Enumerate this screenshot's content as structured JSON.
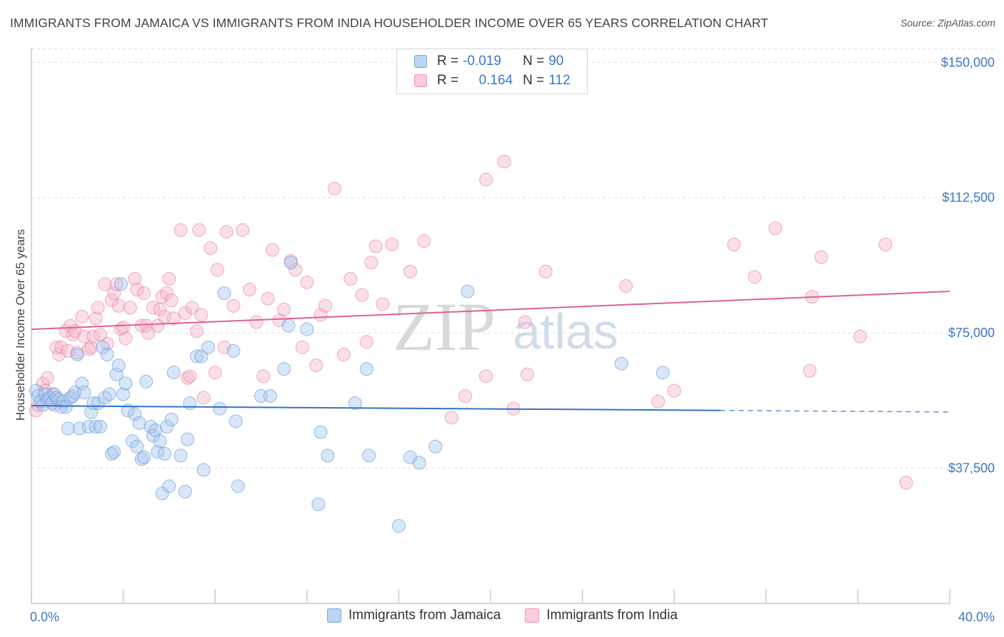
{
  "title": "IMMIGRANTS FROM JAMAICA VS IMMIGRANTS FROM INDIA HOUSEHOLDER INCOME OVER 65 YEARS CORRELATION CHART",
  "source": "Source: ZipAtlas.com",
  "watermark": {
    "zip": "ZIP",
    "atlas": "atlas"
  },
  "legend": {
    "rows": [
      {
        "r_label": "R =",
        "r_value": "-0.019",
        "n_label": "N =",
        "n_value": "90",
        "color": "#a8c8f0"
      },
      {
        "r_label": "R =",
        "r_value": "0.164",
        "n_label": "N =",
        "n_value": "112",
        "color": "#f5b8cc"
      }
    ]
  },
  "bottom_legend": [
    "Immigrants from Jamaica",
    "Immigrants from India"
  ],
  "chart_data": {
    "type": "scatter",
    "ylabel": "Householder Income Over 65 years",
    "xlim": [
      0,
      40
    ],
    "ylim": [
      0,
      155000
    ],
    "x_tick_labels": [
      "0.0%",
      "40.0%"
    ],
    "y_ticks": [
      37500,
      75000,
      112500,
      150000
    ],
    "y_tick_labels": [
      "$37,500",
      "$75,000",
      "$112,500",
      "$150,000"
    ],
    "grid": true,
    "colors": {
      "jamaica": "#5b93d6",
      "jamaica_fill": "#a8c8f0",
      "india": "#e3709a",
      "india_fill": "#f5b8cc"
    },
    "series": [
      {
        "name": "Immigrants from Jamaica",
        "trend": {
          "x0": 0,
          "y0": 54800,
          "x1": 30,
          "y1": 53500,
          "dashed_to_x": 40
        },
        "points": [
          [
            0.2,
            59000
          ],
          [
            0.3,
            57500
          ],
          [
            0.4,
            56000
          ],
          [
            0.5,
            55000
          ],
          [
            0.6,
            58000
          ],
          [
            0.7,
            56500
          ],
          [
            0.8,
            57000
          ],
          [
            0.9,
            55500
          ],
          [
            1.0,
            58000
          ],
          [
            1.1,
            57000
          ],
          [
            1.2,
            56500
          ],
          [
            1.3,
            54500
          ],
          [
            1.4,
            56000
          ],
          [
            1.5,
            54500
          ],
          [
            1.6,
            48500
          ],
          [
            1.7,
            57000
          ],
          [
            1.8,
            57500
          ],
          [
            1.9,
            58500
          ],
          [
            2.0,
            69000
          ],
          [
            2.1,
            48500
          ],
          [
            2.2,
            61000
          ],
          [
            2.3,
            58500
          ],
          [
            2.5,
            49000
          ],
          [
            2.6,
            53000
          ],
          [
            2.7,
            55500
          ],
          [
            2.8,
            49000
          ],
          [
            2.9,
            55500
          ],
          [
            3.0,
            49000
          ],
          [
            3.1,
            71000
          ],
          [
            3.2,
            57000
          ],
          [
            3.3,
            69000
          ],
          [
            3.4,
            58000
          ],
          [
            3.5,
            41500
          ],
          [
            3.6,
            42000
          ],
          [
            3.7,
            63500
          ],
          [
            3.8,
            66000
          ],
          [
            3.9,
            88500
          ],
          [
            4.0,
            58000
          ],
          [
            4.1,
            61000
          ],
          [
            4.2,
            53500
          ],
          [
            4.4,
            45000
          ],
          [
            4.5,
            52500
          ],
          [
            4.6,
            43500
          ],
          [
            4.7,
            50000
          ],
          [
            4.8,
            40000
          ],
          [
            4.9,
            40500
          ],
          [
            5.0,
            61500
          ],
          [
            5.2,
            49000
          ],
          [
            5.3,
            46500
          ],
          [
            5.4,
            48000
          ],
          [
            5.5,
            42000
          ],
          [
            5.6,
            45000
          ],
          [
            5.7,
            30500
          ],
          [
            5.8,
            41500
          ],
          [
            5.9,
            49000
          ],
          [
            6.0,
            32500
          ],
          [
            6.1,
            51000
          ],
          [
            6.2,
            64000
          ],
          [
            6.5,
            41000
          ],
          [
            6.7,
            31000
          ],
          [
            6.8,
            45500
          ],
          [
            6.9,
            55500
          ],
          [
            7.2,
            68500
          ],
          [
            7.4,
            68500
          ],
          [
            7.5,
            37000
          ],
          [
            7.7,
            71000
          ],
          [
            8.2,
            54000
          ],
          [
            8.4,
            86000
          ],
          [
            8.8,
            70000
          ],
          [
            8.9,
            50500
          ],
          [
            9.0,
            32500
          ],
          [
            10.0,
            57500
          ],
          [
            10.4,
            57500
          ],
          [
            11.0,
            65000
          ],
          [
            11.2,
            77000
          ],
          [
            11.3,
            94500
          ],
          [
            12.0,
            76000
          ],
          [
            12.5,
            27500
          ],
          [
            12.6,
            47500
          ],
          [
            12.9,
            41000
          ],
          [
            14.1,
            55500
          ],
          [
            14.6,
            65000
          ],
          [
            14.7,
            41000
          ],
          [
            16.0,
            21500
          ],
          [
            16.5,
            40500
          ],
          [
            16.9,
            39000
          ],
          [
            17.6,
            43500
          ],
          [
            19.0,
            86500
          ],
          [
            25.7,
            66500
          ],
          [
            27.5,
            64000
          ]
        ]
      },
      {
        "name": "Immigrants from India",
        "trend": {
          "x0": 0,
          "y0": 76000,
          "x1": 40,
          "y1": 86500
        },
        "points": [
          [
            0.2,
            53500
          ],
          [
            0.3,
            55000
          ],
          [
            0.5,
            61000
          ],
          [
            0.6,
            59000
          ],
          [
            0.7,
            62500
          ],
          [
            0.8,
            56500
          ],
          [
            0.9,
            58000
          ],
          [
            1.0,
            55000
          ],
          [
            1.1,
            71000
          ],
          [
            1.2,
            69000
          ],
          [
            1.3,
            71000
          ],
          [
            1.5,
            75500
          ],
          [
            1.6,
            70000
          ],
          [
            1.7,
            77000
          ],
          [
            1.8,
            74500
          ],
          [
            1.9,
            75500
          ],
          [
            2.0,
            69500
          ],
          [
            2.2,
            79500
          ],
          [
            2.3,
            74000
          ],
          [
            2.5,
            70500
          ],
          [
            2.6,
            71000
          ],
          [
            2.7,
            74000
          ],
          [
            2.8,
            79000
          ],
          [
            2.9,
            82000
          ],
          [
            3.0,
            74500
          ],
          [
            3.2,
            88500
          ],
          [
            3.3,
            72000
          ],
          [
            3.5,
            84000
          ],
          [
            3.6,
            86000
          ],
          [
            3.7,
            88500
          ],
          [
            3.8,
            82500
          ],
          [
            3.9,
            76000
          ],
          [
            4.0,
            76500
          ],
          [
            4.1,
            73500
          ],
          [
            4.3,
            82000
          ],
          [
            4.5,
            90000
          ],
          [
            4.6,
            87000
          ],
          [
            4.8,
            77000
          ],
          [
            4.9,
            86000
          ],
          [
            5.0,
            77000
          ],
          [
            5.1,
            75000
          ],
          [
            5.3,
            82000
          ],
          [
            5.5,
            77000
          ],
          [
            5.6,
            81500
          ],
          [
            5.7,
            85000
          ],
          [
            5.8,
            79500
          ],
          [
            5.9,
            86000
          ],
          [
            6.0,
            90000
          ],
          [
            6.1,
            84000
          ],
          [
            6.2,
            79000
          ],
          [
            6.5,
            103500
          ],
          [
            6.7,
            80500
          ],
          [
            6.8,
            62500
          ],
          [
            6.9,
            63000
          ],
          [
            7.0,
            82000
          ],
          [
            7.2,
            75500
          ],
          [
            7.3,
            103500
          ],
          [
            7.4,
            80000
          ],
          [
            7.5,
            57000
          ],
          [
            7.8,
            98500
          ],
          [
            8.0,
            64000
          ],
          [
            8.1,
            92500
          ],
          [
            8.4,
            71000
          ],
          [
            8.5,
            103000
          ],
          [
            8.8,
            82500
          ],
          [
            9.2,
            103500
          ],
          [
            9.5,
            87000
          ],
          [
            9.8,
            78000
          ],
          [
            10.1,
            63000
          ],
          [
            10.3,
            84500
          ],
          [
            10.5,
            98000
          ],
          [
            10.8,
            78500
          ],
          [
            11.0,
            81500
          ],
          [
            11.3,
            95000
          ],
          [
            11.5,
            92500
          ],
          [
            11.8,
            71000
          ],
          [
            12.0,
            89000
          ],
          [
            12.4,
            66000
          ],
          [
            12.6,
            80000
          ],
          [
            12.8,
            82500
          ],
          [
            13.2,
            115000
          ],
          [
            13.6,
            69000
          ],
          [
            13.9,
            90000
          ],
          [
            14.4,
            85500
          ],
          [
            14.6,
            72500
          ],
          [
            14.8,
            94500
          ],
          [
            15.0,
            99000
          ],
          [
            15.3,
            83000
          ],
          [
            15.7,
            99500
          ],
          [
            16.5,
            92000
          ],
          [
            17.1,
            100500
          ],
          [
            18.3,
            51500
          ],
          [
            18.9,
            57500
          ],
          [
            19.8,
            63000
          ],
          [
            19.8,
            117500
          ],
          [
            20.6,
            122500
          ],
          [
            21.0,
            54000
          ],
          [
            21.5,
            78000
          ],
          [
            21.6,
            63500
          ],
          [
            22.4,
            92000
          ],
          [
            25.9,
            88000
          ],
          [
            27.3,
            56000
          ],
          [
            28.0,
            59000
          ],
          [
            30.6,
            99500
          ],
          [
            31.5,
            90500
          ],
          [
            32.4,
            104000
          ],
          [
            33.9,
            64500
          ],
          [
            34.0,
            85000
          ],
          [
            34.4,
            96000
          ],
          [
            36.1,
            74000
          ],
          [
            37.2,
            99500
          ],
          [
            38.1,
            33500
          ]
        ]
      }
    ]
  }
}
